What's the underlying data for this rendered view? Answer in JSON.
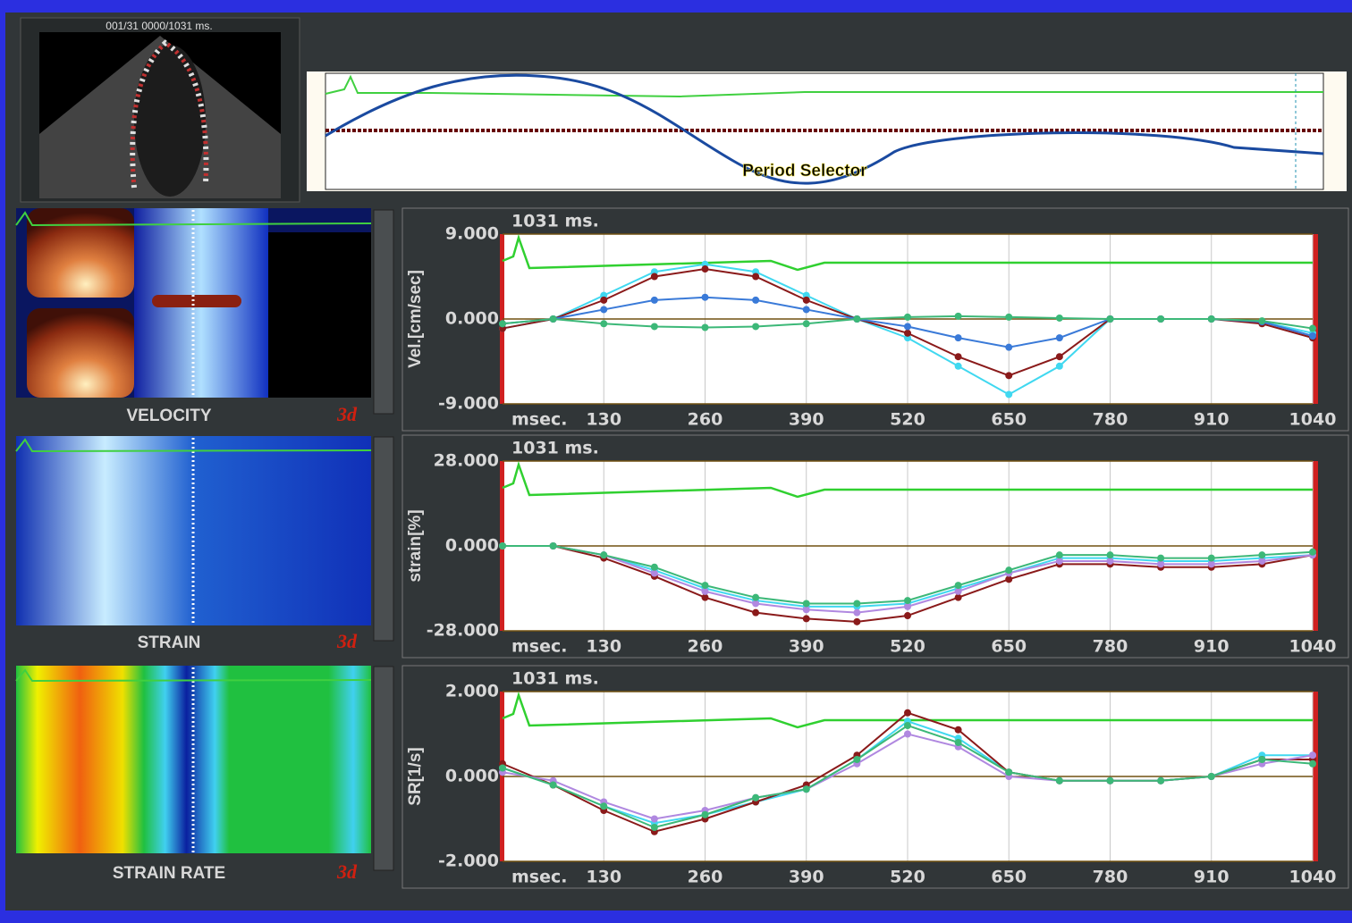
{
  "header": {
    "frame_label": "001/31  0000/1031 ms."
  },
  "period_selector": {
    "label": "Period Selector"
  },
  "panels": [
    {
      "map_label": "VELOCITY",
      "badge": "3d",
      "chart": {
        "type": "line",
        "duration_label": "1031 ms.",
        "y_label": "Vel.[cm/sec]",
        "x_unit_label": "msec.",
        "xlim": [
          0,
          1040
        ],
        "ylim": [
          -9,
          9
        ],
        "yticks": [
          {
            "value": 9,
            "label": "9.000"
          },
          {
            "value": 0,
            "label": "0.000"
          },
          {
            "value": -9,
            "label": "-9.000"
          }
        ],
        "xticks": [
          130,
          260,
          390,
          520,
          650,
          780,
          910,
          1040
        ],
        "x": [
          0,
          65,
          130,
          195,
          260,
          325,
          390,
          455,
          520,
          585,
          650,
          715,
          780,
          845,
          910,
          975,
          1040
        ],
        "series": [
          {
            "color": "#40d8f0",
            "values": [
              -1,
              0,
              2.5,
              5,
              5.8,
              5,
              2.5,
              0,
              -2,
              -5,
              -8,
              -5,
              0,
              0,
              0,
              -0.3,
              -1.5
            ]
          },
          {
            "color": "#8a1a1a",
            "values": [
              -1,
              0,
              2,
              4.5,
              5.3,
              4.5,
              2,
              0,
              -1.5,
              -4,
              -6,
              -4,
              0,
              0,
              0,
              -0.5,
              -2
            ]
          },
          {
            "color": "#3a7ad8",
            "values": [
              -0.5,
              0,
              1,
              2,
              2.3,
              2,
              1,
              0,
              -0.8,
              -2,
              -3,
              -2,
              0,
              0,
              0,
              -0.3,
              -1.8
            ]
          },
          {
            "color": "#3cb878",
            "values": [
              -0.5,
              0,
              -0.5,
              -0.8,
              -0.9,
              -0.8,
              -0.5,
              0,
              0.2,
              0.3,
              0.2,
              0.1,
              0,
              0,
              0,
              -0.2,
              -1
            ]
          }
        ]
      }
    },
    {
      "map_label": "STRAIN",
      "badge": "3d",
      "chart": {
        "type": "line",
        "duration_label": "1031 ms.",
        "y_label": "strain[%]",
        "x_unit_label": "msec.",
        "xlim": [
          0,
          1040
        ],
        "ylim": [
          -28,
          28
        ],
        "yticks": [
          {
            "value": 28,
            "label": "28.000"
          },
          {
            "value": 0,
            "label": "0.000"
          },
          {
            "value": -28,
            "label": "-28.000"
          }
        ],
        "xticks": [
          130,
          260,
          390,
          520,
          650,
          780,
          910,
          1040
        ],
        "x": [
          0,
          65,
          130,
          195,
          260,
          325,
          390,
          455,
          520,
          585,
          650,
          715,
          780,
          845,
          910,
          975,
          1040
        ],
        "series": [
          {
            "color": "#40d8f0",
            "values": [
              0,
              0,
              -3,
              -8,
              -14,
              -18,
              -20,
              -20,
              -19,
              -14,
              -9,
              -4,
              -4,
              -5,
              -5,
              -4,
              -3
            ]
          },
          {
            "color": "#8a1a1a",
            "values": [
              0,
              0,
              -4,
              -10,
              -17,
              -22,
              -24,
              -25,
              -23,
              -17,
              -11,
              -6,
              -6,
              -7,
              -7,
              -6,
              -3
            ]
          },
          {
            "color": "#b088e0",
            "values": [
              0,
              0,
              -3,
              -9,
              -15,
              -19,
              -21,
              -22,
              -20,
              -15,
              -9,
              -5,
              -5,
              -6,
              -6,
              -5,
              -3
            ]
          },
          {
            "color": "#3cb878",
            "values": [
              0,
              0,
              -3,
              -7,
              -13,
              -17,
              -19,
              -19,
              -18,
              -13,
              -8,
              -3,
              -3,
              -4,
              -4,
              -3,
              -2
            ]
          }
        ]
      }
    },
    {
      "map_label": "STRAIN RATE",
      "badge": "3d",
      "chart": {
        "type": "line",
        "duration_label": "1031 ms.",
        "y_label": "SR[1/s]",
        "x_unit_label": "msec.",
        "xlim": [
          0,
          1040
        ],
        "ylim": [
          -2,
          2
        ],
        "yticks": [
          {
            "value": 2,
            "label": "2.000"
          },
          {
            "value": 0,
            "label": "0.000"
          },
          {
            "value": -2,
            "label": "-2.000"
          }
        ],
        "xticks": [
          130,
          260,
          390,
          520,
          650,
          780,
          910,
          1040
        ],
        "x": [
          0,
          65,
          130,
          195,
          260,
          325,
          390,
          455,
          520,
          585,
          650,
          715,
          780,
          845,
          910,
          975,
          1040
        ],
        "series": [
          {
            "color": "#40d8f0",
            "values": [
              0.2,
              -0.2,
              -0.7,
              -1.1,
              -0.9,
              -0.6,
              -0.3,
              0.4,
              1.3,
              0.9,
              0.1,
              -0.1,
              -0.1,
              -0.1,
              0,
              0.5,
              0.5
            ]
          },
          {
            "color": "#8a1a1a",
            "values": [
              0.3,
              -0.2,
              -0.8,
              -1.3,
              -1.0,
              -0.6,
              -0.2,
              0.5,
              1.5,
              1.1,
              0.1,
              -0.1,
              -0.1,
              -0.1,
              0,
              0.4,
              0.4
            ]
          },
          {
            "color": "#b088e0",
            "values": [
              0.1,
              -0.1,
              -0.6,
              -1.0,
              -0.8,
              -0.5,
              -0.3,
              0.3,
              1.0,
              0.7,
              0,
              -0.1,
              -0.1,
              -0.1,
              0,
              0.3,
              0.5
            ]
          },
          {
            "color": "#3cb878",
            "values": [
              0.2,
              -0.2,
              -0.7,
              -1.2,
              -0.9,
              -0.5,
              -0.3,
              0.4,
              1.2,
              0.8,
              0.1,
              -0.1,
              -0.1,
              -0.1,
              0,
              0.4,
              0.3
            ]
          }
        ]
      }
    }
  ]
}
